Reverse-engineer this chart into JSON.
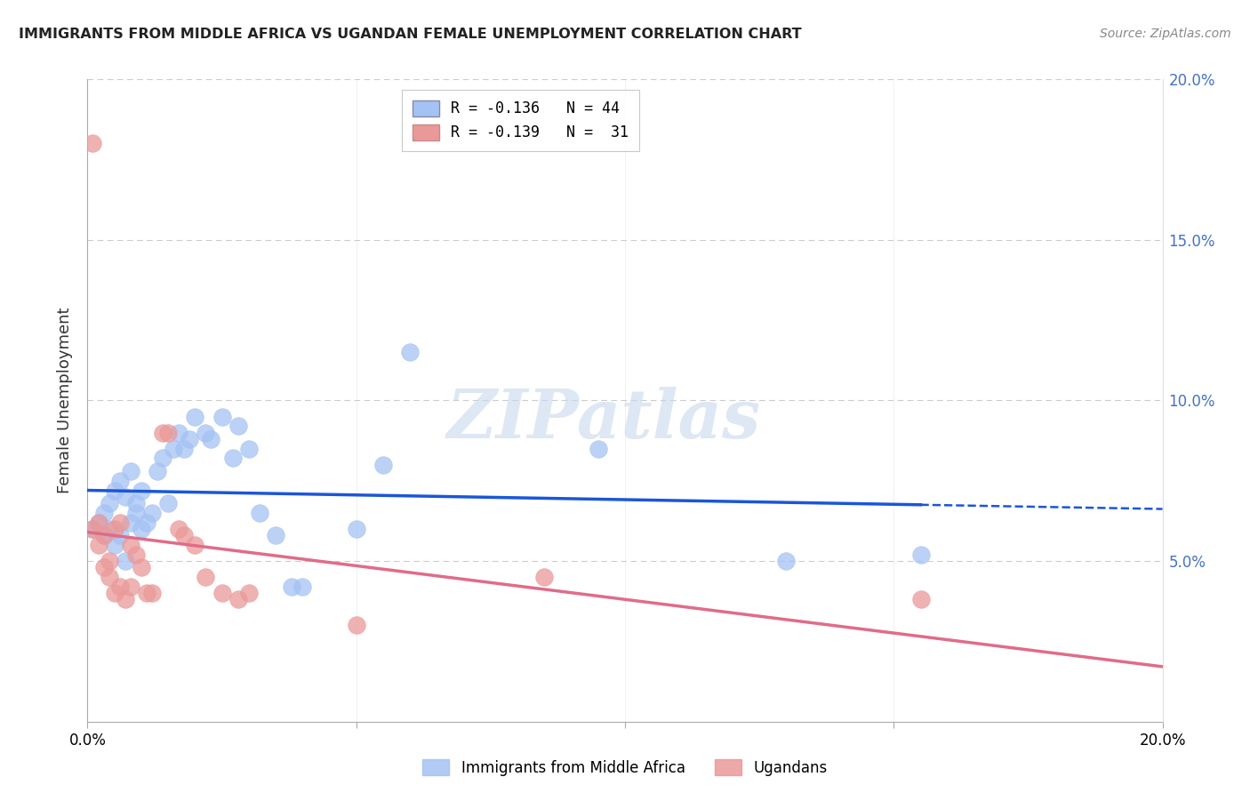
{
  "title": "IMMIGRANTS FROM MIDDLE AFRICA VS UGANDAN FEMALE UNEMPLOYMENT CORRELATION CHART",
  "source": "Source: ZipAtlas.com",
  "ylabel": "Female Unemployment",
  "xlim": [
    0.0,
    0.2
  ],
  "ylim": [
    0.0,
    0.2
  ],
  "x_ticks": [
    0.0,
    0.05,
    0.1,
    0.15,
    0.2
  ],
  "y_ticks": [
    0.0,
    0.05,
    0.1,
    0.15,
    0.2
  ],
  "legend_blue_r": "R = -0.136",
  "legend_blue_n": "N = 44",
  "legend_pink_r": "R = -0.139",
  "legend_pink_n": "N =  31",
  "blue_color": "#a4c2f4",
  "pink_color": "#ea9999",
  "blue_line_color": "#1a56db",
  "pink_line_color": "#e06c88",
  "watermark_text": "ZIPatlas",
  "blue_scatter_x": [
    0.001,
    0.002,
    0.003,
    0.003,
    0.004,
    0.004,
    0.005,
    0.005,
    0.006,
    0.006,
    0.007,
    0.007,
    0.008,
    0.008,
    0.009,
    0.009,
    0.01,
    0.01,
    0.011,
    0.012,
    0.013,
    0.014,
    0.015,
    0.016,
    0.017,
    0.018,
    0.019,
    0.02,
    0.022,
    0.023,
    0.025,
    0.027,
    0.028,
    0.03,
    0.032,
    0.035,
    0.038,
    0.04,
    0.05,
    0.055,
    0.06,
    0.095,
    0.13,
    0.155
  ],
  "blue_scatter_y": [
    0.06,
    0.062,
    0.058,
    0.065,
    0.06,
    0.068,
    0.055,
    0.072,
    0.058,
    0.075,
    0.05,
    0.07,
    0.062,
    0.078,
    0.065,
    0.068,
    0.06,
    0.072,
    0.062,
    0.065,
    0.078,
    0.082,
    0.068,
    0.085,
    0.09,
    0.085,
    0.088,
    0.095,
    0.09,
    0.088,
    0.095,
    0.082,
    0.092,
    0.085,
    0.065,
    0.058,
    0.042,
    0.042,
    0.06,
    0.08,
    0.115,
    0.085,
    0.05,
    0.052
  ],
  "pink_scatter_x": [
    0.001,
    0.001,
    0.002,
    0.002,
    0.003,
    0.003,
    0.004,
    0.004,
    0.005,
    0.005,
    0.006,
    0.006,
    0.007,
    0.008,
    0.008,
    0.009,
    0.01,
    0.011,
    0.012,
    0.014,
    0.015,
    0.017,
    0.018,
    0.02,
    0.022,
    0.025,
    0.028,
    0.03,
    0.05,
    0.085,
    0.155
  ],
  "pink_scatter_y": [
    0.18,
    0.06,
    0.055,
    0.062,
    0.058,
    0.048,
    0.05,
    0.045,
    0.04,
    0.06,
    0.042,
    0.062,
    0.038,
    0.055,
    0.042,
    0.052,
    0.048,
    0.04,
    0.04,
    0.09,
    0.09,
    0.06,
    0.058,
    0.055,
    0.045,
    0.04,
    0.038,
    0.04,
    0.03,
    0.045,
    0.038
  ]
}
